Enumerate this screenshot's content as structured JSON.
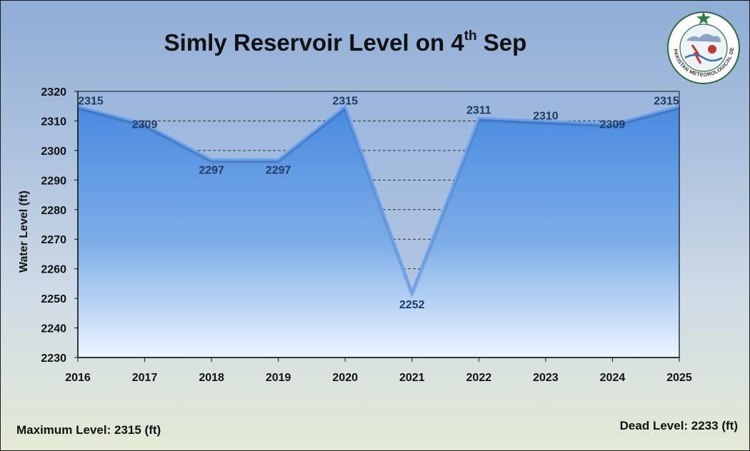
{
  "chart_data": {
    "type": "area",
    "title_main": "Simly Reservoir Level on 4",
    "title_sup": "th",
    "title_end": " Sep",
    "ylabel": "Water Level (ft)",
    "xlabel": "",
    "categories": [
      "2016",
      "2017",
      "2018",
      "2019",
      "2020",
      "2021",
      "2022",
      "2023",
      "2024",
      "2025"
    ],
    "series": [
      {
        "name": "Water Level (ft)",
        "values": [
          2315,
          2309,
          2297,
          2297,
          2315,
          2252,
          2311,
          2310,
          2309,
          2315
        ]
      }
    ],
    "ylim": [
      2230,
      2320
    ],
    "yticks": [
      2230,
      2240,
      2250,
      2260,
      2270,
      2280,
      2290,
      2300,
      2310,
      2320
    ],
    "grid": "dashed-horizontal",
    "legend": "none"
  },
  "footer": {
    "max_level": "Maximum Level: 2315 (ft)",
    "dead_level": "Dead Level: 2233 (ft)"
  },
  "logo": {
    "name": "Pakistan Meteorological Department",
    "text": "PAKISTAN METEOROLOGICAL DEPARTMENT"
  },
  "colors": {
    "area_top": "#4a8ae0",
    "area_bottom": "#e8f1ff",
    "label": "#1f3b63",
    "grid": "#333333"
  }
}
